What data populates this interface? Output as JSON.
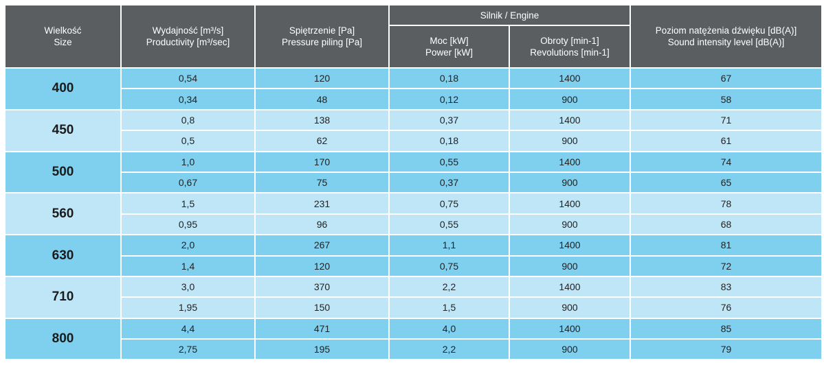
{
  "headers": {
    "size": [
      "Wielkość",
      "Size"
    ],
    "productivity": [
      "Wydajność [m³/s]",
      "Productivity [m³/sec]"
    ],
    "pressure": [
      "Spiętrzenie [Pa]",
      "Pressure piling [Pa]"
    ],
    "engine": "Silnik / Engine",
    "power": [
      "Moc [kW]",
      "Power [kW]"
    ],
    "revolutions": [
      "Obroty [min-1]",
      "Revolutions  [min-1]"
    ],
    "sound": [
      "Poziom natężenia dźwięku [dB(A)]",
      "Sound intensity level [dB(A)]"
    ]
  },
  "rows": [
    {
      "size": "400",
      "r": [
        [
          "0,54",
          "120",
          "0,18",
          "1400",
          "67"
        ],
        [
          "0,34",
          "48",
          "0,12",
          "900",
          "58"
        ]
      ]
    },
    {
      "size": "450",
      "r": [
        [
          "0,8",
          "138",
          "0,37",
          "1400",
          "71"
        ],
        [
          "0,5",
          "62",
          "0,18",
          "900",
          "61"
        ]
      ]
    },
    {
      "size": "500",
      "r": [
        [
          "1,0",
          "170",
          "0,55",
          "1400",
          "74"
        ],
        [
          "0,67",
          "75",
          "0,37",
          "900",
          "65"
        ]
      ]
    },
    {
      "size": "560",
      "r": [
        [
          "1,5",
          "231",
          "0,75",
          "1400",
          "78"
        ],
        [
          "0,95",
          "96",
          "0,55",
          "900",
          "68"
        ]
      ]
    },
    {
      "size": "630",
      "r": [
        [
          "2,0",
          "267",
          "1,1",
          "1400",
          "81"
        ],
        [
          "1,4",
          "120",
          "0,75",
          "900",
          "72"
        ]
      ]
    },
    {
      "size": "710",
      "r": [
        [
          "3,0",
          "370",
          "2,2",
          "1400",
          "83"
        ],
        [
          "1,95",
          "150",
          "1,5",
          "900",
          "76"
        ]
      ]
    },
    {
      "size": "800",
      "r": [
        [
          "4,4",
          "471",
          "4,0",
          "1400",
          "85"
        ],
        [
          "2,75",
          "195",
          "2,2",
          "900",
          "79"
        ]
      ]
    }
  ],
  "colors": {
    "header_bg": "#5b5e60",
    "row_dark": "#7fcfee",
    "row_light": "#bfe6f7"
  }
}
